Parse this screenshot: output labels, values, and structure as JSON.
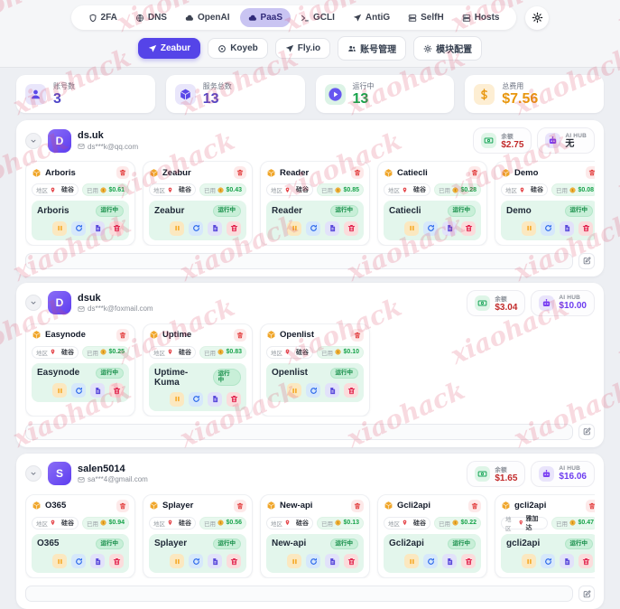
{
  "watermark": "xiaohack",
  "nav": {
    "tabs": [
      {
        "label": "2FA",
        "icon": "shield-icon",
        "active": false
      },
      {
        "label": "DNS",
        "icon": "globe-icon",
        "active": false
      },
      {
        "label": "OpenAI",
        "icon": "cloud-icon",
        "active": false
      },
      {
        "label": "PaaS",
        "icon": "cloud-icon",
        "active": true
      },
      {
        "label": "GCLI",
        "icon": "terminal-icon",
        "active": false
      },
      {
        "label": "AntiG",
        "icon": "plane-icon",
        "active": false
      },
      {
        "label": "SelfH",
        "icon": "server-icon",
        "active": false
      },
      {
        "label": "Hosts",
        "icon": "server-icon",
        "active": false
      }
    ]
  },
  "subnav": {
    "items": [
      {
        "label": "Zeabur",
        "icon": "plane-icon",
        "active": true
      },
      {
        "label": "Koyeb",
        "icon": "circle-icon",
        "active": false
      },
      {
        "label": "Fly.io",
        "icon": "plane-icon",
        "active": false
      },
      {
        "label": "账号管理",
        "icon": "users-icon",
        "active": false
      },
      {
        "label": "模块配置",
        "icon": "gear-icon",
        "active": false
      }
    ]
  },
  "stats": [
    {
      "label": "账号数",
      "value": "3",
      "icon": "user-icon",
      "value_color": "#4f46c8"
    },
    {
      "label": "服务总数",
      "value": "13",
      "icon": "box-icon",
      "value_color": "#4f46c8"
    },
    {
      "label": "运行中",
      "value": "13",
      "icon": "play-icon",
      "value_color": "#16a34a"
    },
    {
      "label": "总费用",
      "value": "$7.56",
      "icon": "dollar-icon",
      "value_color": "#e8960c"
    }
  ],
  "accounts": [
    {
      "initial": "D",
      "name": "ds.uk",
      "email": "ds***k@qq.com",
      "balance_label": "余额",
      "balance": "$2.75",
      "aihub_label": "AI HUB",
      "aihub": "无",
      "services": [
        {
          "title": "Arboris",
          "region_label": "地区",
          "region": "硅谷",
          "used_label": "已用",
          "used": "$0.61",
          "service_name": "Arboris",
          "status": "运行中"
        },
        {
          "title": "Zeabur",
          "region_label": "地区",
          "region": "硅谷",
          "used_label": "已用",
          "used": "$0.43",
          "service_name": "Zeabur",
          "status": "运行中"
        },
        {
          "title": "Reader",
          "region_label": "地区",
          "region": "硅谷",
          "used_label": "已用",
          "used": "$0.85",
          "service_name": "Reader",
          "status": "运行中"
        },
        {
          "title": "Catiecli",
          "region_label": "地区",
          "region": "硅谷",
          "used_label": "已用",
          "used": "$0.28",
          "service_name": "Catiecli",
          "status": "运行中"
        },
        {
          "title": "Demo",
          "region_label": "地区",
          "region": "硅谷",
          "used_label": "已用",
          "used": "$0.08",
          "service_name": "Demo",
          "status": "运行中"
        }
      ]
    },
    {
      "initial": "D",
      "name": "dsuk",
      "email": "ds***k@foxmail.com",
      "balance_label": "余额",
      "balance": "$3.04",
      "aihub_label": "AI HUB",
      "aihub": "$10.00",
      "services": [
        {
          "title": "Easynode",
          "region_label": "地区",
          "region": "硅谷",
          "used_label": "已用",
          "used": "$0.25",
          "service_name": "Easynode",
          "status": "运行中"
        },
        {
          "title": "Uptime",
          "region_label": "地区",
          "region": "硅谷",
          "used_label": "已用",
          "used": "$0.83",
          "service_name": "Uptime-Kuma",
          "status": "运行中"
        },
        {
          "title": "Openlist",
          "region_label": "地区",
          "region": "硅谷",
          "used_label": "已用",
          "used": "$0.10",
          "service_name": "Openlist",
          "status": "运行中"
        }
      ]
    },
    {
      "initial": "S",
      "name": "salen5014",
      "email": "sa***4@gmail.com",
      "balance_label": "余额",
      "balance": "$1.65",
      "aihub_label": "AI HUB",
      "aihub": "$16.06",
      "services": [
        {
          "title": "O365",
          "region_label": "地区",
          "region": "硅谷",
          "used_label": "已用",
          "used": "$0.94",
          "service_name": "O365",
          "status": "运行中"
        },
        {
          "title": "Splayer",
          "region_label": "地区",
          "region": "硅谷",
          "used_label": "已用",
          "used": "$0.56",
          "service_name": "Splayer",
          "status": "运行中"
        },
        {
          "title": "New-api",
          "region_label": "地区",
          "region": "硅谷",
          "used_label": "已用",
          "used": "$0.13",
          "service_name": "New-api",
          "status": "运行中"
        },
        {
          "title": "Gcli2api",
          "region_label": "地区",
          "region": "硅谷",
          "used_label": "已用",
          "used": "$0.22",
          "service_name": "Gcli2api",
          "status": "运行中"
        },
        {
          "title": "gcli2api",
          "region_label": "地区",
          "region": "雅加达",
          "used_label": "已用",
          "used": "$0.47",
          "service_name": "gcli2api",
          "status": "运行中"
        }
      ]
    }
  ]
}
